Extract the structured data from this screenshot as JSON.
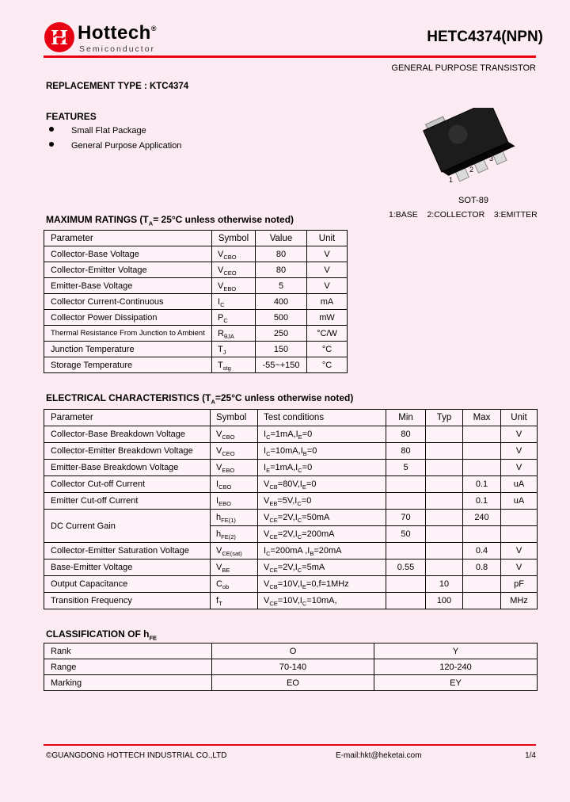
{
  "colors": {
    "accent": "#e60012",
    "page_bg": "#fdebf3",
    "cell_bg": "#fdf3f8"
  },
  "header": {
    "logo_text": "Hottech",
    "logo_reg": "®",
    "logo_subtext": "Semiconductor",
    "part_number": "HETC4374(NPN)",
    "category": "GENERAL PURPOSE TRANSISTOR",
    "replacement_type": "REPLACEMENT TYPE : KTC4374"
  },
  "features": {
    "title": "FEATURES",
    "items": [
      "Small Flat Package",
      "General Purpose Application"
    ]
  },
  "package": {
    "name": "SOT-89",
    "pin_labels": [
      "1",
      "2",
      "3"
    ],
    "pin_map": "1:BASE    2:COLLECTOR    3:EMITTER"
  },
  "maximum_ratings": {
    "title": "MAXIMUM RATINGS (T_{A}= 25°C unless otherwise noted)",
    "headers": [
      "Parameter",
      "Symbol",
      "Value",
      "Unit"
    ],
    "rows": [
      {
        "parameter": "Collector-Base Voltage",
        "symbol": "V_{CBO}",
        "value": "80",
        "unit": "V"
      },
      {
        "parameter": "Collector-Emitter Voltage",
        "symbol": "V_{CEO}",
        "value": "80",
        "unit": "V"
      },
      {
        "parameter": "Emitter-Base Voltage",
        "symbol": "V_{EBO}",
        "value": "5",
        "unit": "V"
      },
      {
        "parameter": "Collector Current-Continuous",
        "symbol": "I_{C}",
        "value": "400",
        "unit": "mA"
      },
      {
        "parameter": "Collector Power Dissipation",
        "symbol": "P_{C}",
        "value": "500",
        "unit": "mW"
      },
      {
        "parameter": "Thermal Resistance From Junction to Ambient",
        "symbol": "R_{θJA}",
        "value": "250",
        "unit": "°C/W"
      },
      {
        "parameter": "Junction Temperature",
        "symbol": "T_{J}",
        "value": "150",
        "unit": "°C"
      },
      {
        "parameter": "Storage Temperature",
        "symbol": "T_{stg}",
        "value": "-55~+150",
        "unit": "°C"
      }
    ]
  },
  "electrical_characteristics": {
    "title": "ELECTRICAL CHARACTERISTICS (T_{A}=25°C unless otherwise noted)",
    "headers": [
      "Parameter",
      "Symbol",
      "Test conditions",
      "Min",
      "Typ",
      "Max",
      "Unit"
    ],
    "rows": [
      {
        "parameter": "Collector-Base Breakdown Voltage",
        "symbol": "V_{CBO}",
        "conditions": "I_{C}=1mA,I_{E}=0",
        "min": "80",
        "typ": "",
        "max": "",
        "unit": "V"
      },
      {
        "parameter": "Collector-Emitter Breakdown Voltage",
        "symbol": "V_{CEO}",
        "conditions": "I_{C}=10mA,I_{B}=0",
        "min": "80",
        "typ": "",
        "max": "",
        "unit": "V"
      },
      {
        "parameter": "Emitter-Base Breakdown Voltage",
        "symbol": "V_{EBO}",
        "conditions": "I_{E}=1mA,I_{C}=0",
        "min": "5",
        "typ": "",
        "max": "",
        "unit": "V"
      },
      {
        "parameter": "Collector Cut-off Current",
        "symbol": "I_{CBO}",
        "conditions": "V_{CB}=80V,I_{E}=0",
        "min": "",
        "typ": "",
        "max": "0.1",
        "unit": "uA"
      },
      {
        "parameter": "Emitter Cut-off Current",
        "symbol": "I_{EBO}",
        "conditions": "V_{EB}=5V,I_{C}=0",
        "min": "",
        "typ": "",
        "max": "0.1",
        "unit": "uA"
      },
      {
        "parameter": "DC Current Gain",
        "parameter_span": 2,
        "symbol": "h_{FE(1)}",
        "conditions": "V_{CE}=2V,I_{C}=50mA",
        "min": "70",
        "typ": "",
        "max": "240",
        "unit": ""
      },
      {
        "parameter": null,
        "symbol": "h_{FE(2)}",
        "conditions": "V_{CE}=2V,I_{C}=200mA",
        "min": "50",
        "typ": "",
        "max": "",
        "unit": ""
      },
      {
        "parameter": "Collector-Emitter Saturation Voltage",
        "symbol": "V_{CE(sat)}",
        "conditions": "I_{C}=200mA ,I_{B}=20mA",
        "min": "",
        "typ": "",
        "max": "0.4",
        "unit": "V"
      },
      {
        "parameter": "Base-Emitter Voltage",
        "symbol": "V_{BE}",
        "conditions": "V_{CE}=2V,I_{C}=5mA",
        "min": "0.55",
        "typ": "",
        "max": "0.8",
        "unit": "V"
      },
      {
        "parameter": "Output Capacitance",
        "symbol": "C_{ob}",
        "conditions": "V_{CB}=10V,I_{E}=0,f=1MHz",
        "min": "",
        "typ": "10",
        "max": "",
        "unit": "pF"
      },
      {
        "parameter": "Transition Frequency",
        "symbol": "f_{T}",
        "conditions": "V_{CE}=10V,I_{C}=10mA,",
        "min": "",
        "typ": "100",
        "max": "",
        "unit": "MHz"
      }
    ]
  },
  "classification": {
    "title": "CLASSIFICATION OF h_{FE}",
    "rows": [
      {
        "label": "Rank",
        "o": "O",
        "y": "Y"
      },
      {
        "label": "Range",
        "o": "70-140",
        "y": "120-240"
      },
      {
        "label": "Marking",
        "o": "EO",
        "y": "EY"
      }
    ]
  },
  "footer": {
    "company": "©GUANGDONG HOTTECH INDUSTRIAL CO.,LTD",
    "email": "E-mail:hkt@heketai.com",
    "page": "1/4"
  }
}
